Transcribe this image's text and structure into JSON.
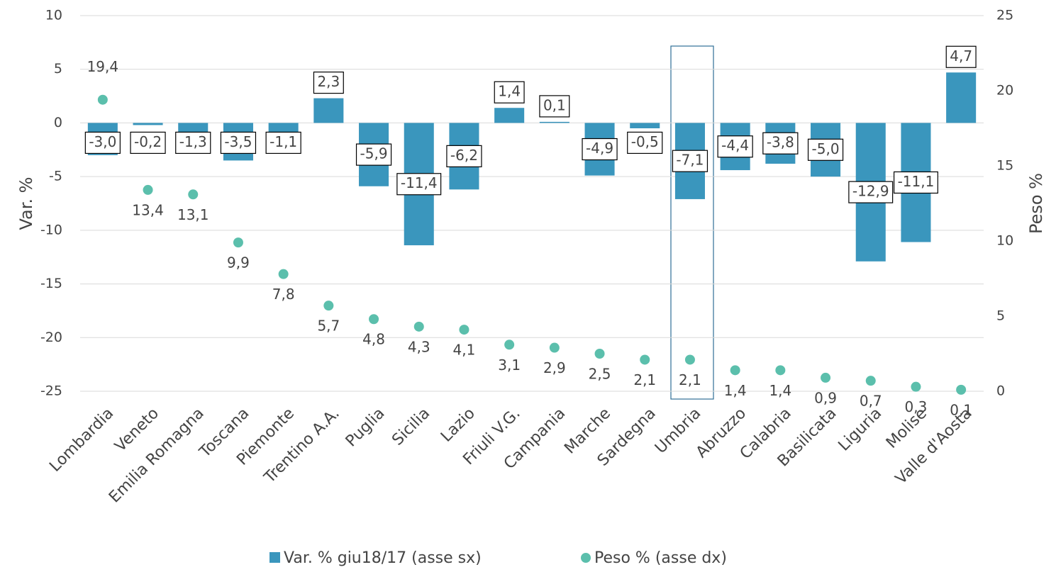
{
  "chart_data": {
    "type": "bar",
    "categories": [
      "Lombardia",
      "Veneto",
      "Emilia Romagna",
      "Toscana",
      "Piemonte",
      "Trentino A.A.",
      "Puglia",
      "Sicilia",
      "Lazio",
      "Friuli V.G.",
      "Campania",
      "Marche",
      "Sardegna",
      "Umbria",
      "Abruzzo",
      "Calabria",
      "Basilicata",
      "Liguria",
      "Molise",
      "Valle d'Aosta"
    ],
    "y_label": "Var. %",
    "y2_label": "Peso %",
    "series": [
      {
        "name": "Var. % giu18/17 (asse sx)",
        "type": "bar",
        "color": "#3a96bd",
        "values": [
          -3.0,
          -0.2,
          -1.3,
          -3.5,
          -1.1,
          2.3,
          -5.9,
          -11.4,
          -6.2,
          1.4,
          0.1,
          -4.9,
          -0.5,
          -7.1,
          -4.4,
          -3.8,
          -5.0,
          -12.9,
          -11.1,
          4.7
        ],
        "value_labels": [
          "-3,0",
          "-0,2",
          "-1,3",
          "-3,5",
          "-1,1",
          "2,3",
          "-5,9",
          "-11,4",
          "-6,2",
          "1,4",
          "0,1",
          "-4,9",
          "-0,5",
          "-7,1",
          "-4,4",
          "-3,8",
          "-5,0",
          "-12,9",
          "-11,1",
          "4,7"
        ]
      },
      {
        "name": "Peso % (asse dx)",
        "type": "scatter",
        "axis": "y2",
        "color": "#5bbfac",
        "values": [
          19.4,
          13.4,
          13.1,
          9.9,
          7.8,
          5.7,
          4.8,
          4.3,
          4.1,
          3.1,
          2.9,
          2.5,
          2.1,
          2.1,
          1.4,
          1.4,
          0.9,
          0.7,
          0.3,
          0.1
        ],
        "value_labels": [
          "19,4",
          "13,4",
          "13,1",
          "9,9",
          "7,8",
          "5,7",
          "4,8",
          "4,3",
          "4,1",
          "3,1",
          "2,9",
          "2,5",
          "2,1",
          "2,1",
          "1,4",
          "1,4",
          "0,9",
          "0,7",
          "0,3",
          "0,1"
        ]
      }
    ],
    "ylim": [
      -25,
      10
    ],
    "yticks": [
      -25,
      -20,
      -15,
      -10,
      -5,
      0,
      5,
      10
    ],
    "y2lim": [
      0,
      25
    ],
    "y2ticks": [
      0,
      5,
      10,
      15,
      20,
      25
    ],
    "grid": true,
    "legend": "bottom"
  }
}
